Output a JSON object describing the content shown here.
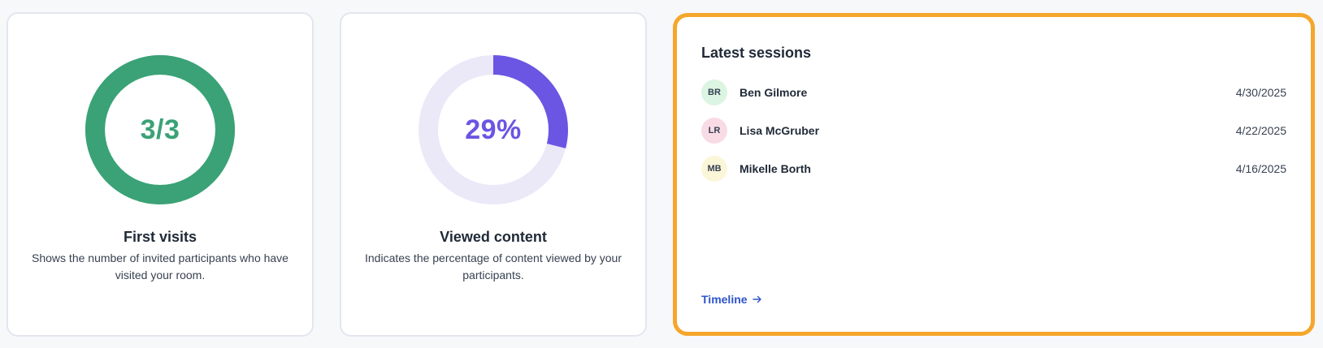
{
  "colors": {
    "visits_accent": "#3aa276",
    "content_accent": "#6b55e3",
    "content_track": "#ebe8f8",
    "sessions_border": "#f5a62c",
    "link": "#2f54c9"
  },
  "first_visits": {
    "value_text": "3/3",
    "fraction": 1.0,
    "title": "First visits",
    "description": "Shows the number of invited participants who have visited your room."
  },
  "viewed_content": {
    "value_text": "29%",
    "fraction": 0.29,
    "title": "Viewed content",
    "description": "Indicates the percentage of content viewed by your participants."
  },
  "latest_sessions": {
    "title": "Latest sessions",
    "items": [
      {
        "initials": "BR",
        "name": "Ben Gilmore",
        "date": "4/30/2025",
        "avatar_color": "#dcf5e3"
      },
      {
        "initials": "LR",
        "name": "Lisa McGruber",
        "date": "4/22/2025",
        "avatar_color": "#f9dbe5"
      },
      {
        "initials": "MB",
        "name": "Mikelle Borth",
        "date": "4/16/2025",
        "avatar_color": "#fbf6d8"
      }
    ],
    "link_label": "Timeline",
    "link_icon": "arrow-right-icon"
  }
}
